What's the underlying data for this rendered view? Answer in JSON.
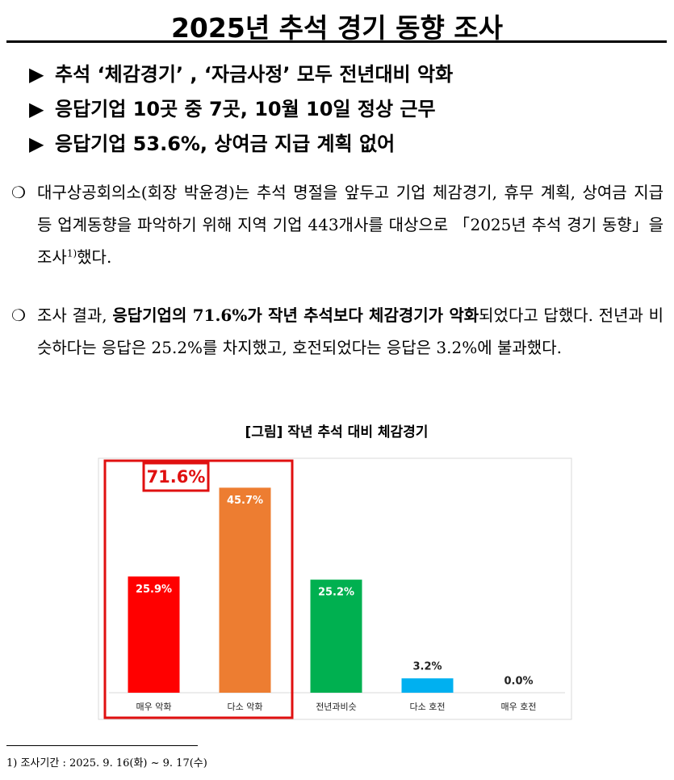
{
  "title": "2025년 추석 경기 동향 조사",
  "highlights": [
    "추석 ‘체감경기’ , ‘자금사정’ 모두 전년대비 악화",
    "응답기업 10곳 중 7곳, 10월 10일 정상 근무",
    "응답기업 53.6%, 상여금 지급 계획 없어"
  ],
  "paragraphs": [
    {
      "segments": [
        {
          "text": "대구상공회의소(회장 박윤경)는 추석 명절을 앞두고 기업 체감경기, 휴무 계획, 상여금 지급 등 업계동향을 파악하기 위해 지역 기업 443개사를 대상으로 「2025년 추석 경기 동향」을 조사",
          "bold": false
        },
        {
          "text": "1)",
          "bold": false,
          "sup": true
        },
        {
          "text": "했다.",
          "bold": false
        }
      ]
    },
    {
      "segments": [
        {
          "text": "조사 결과, ",
          "bold": false
        },
        {
          "text": "응답기업의 71.6%가 작년 추석보다 체감경기가 악화",
          "bold": true
        },
        {
          "text": "되었다고 답했다. 전년과 비슷하다는 응답은 25.2%를 차지했고, 호전되었다는 응답은 3.2%에 불과했다.",
          "bold": false
        }
      ]
    }
  ],
  "chart_data": {
    "type": "bar",
    "title": "[그림] 작년 추석 대비 체감경기",
    "categories": [
      "매우 악화",
      "다소 악화",
      "전년과비슷",
      "다소 호전",
      "매우 호전"
    ],
    "values": [
      25.9,
      45.7,
      25.2,
      3.2,
      0.0
    ],
    "value_labels": [
      "25.9%",
      "45.7%",
      "25.2%",
      "3.2%",
      "0.0%"
    ],
    "colors": [
      "#ff0000",
      "#ed7d31",
      "#00b050",
      "#00b0f0",
      "#7f7f7f"
    ],
    "annotation": "71.6%"
  },
  "footnote": "1) 조사기간 : 2025. 9. 16(화) ~ 9. 17(수)"
}
